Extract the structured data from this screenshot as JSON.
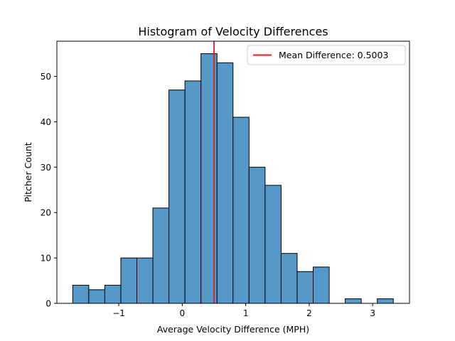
{
  "chart_data": {
    "type": "bar",
    "title": "Histogram of Velocity Differences",
    "xlabel": "Average Velocity Difference (MPH)",
    "ylabel": "Pitcher Count",
    "xlim": [
      -1.975,
      3.58
    ],
    "ylim": [
      0,
      57.75
    ],
    "xticks": [
      -1,
      0,
      1,
      2,
      3
    ],
    "xtick_labels": [
      "−1",
      "0",
      "1",
      "2",
      "3"
    ],
    "yticks": [
      0,
      10,
      20,
      30,
      40,
      50
    ],
    "yticks_labels": [
      "0",
      "10",
      "20",
      "30",
      "40",
      "50"
    ],
    "bin_start": -1.725,
    "bin_width": 0.2525,
    "counts": [
      4,
      3,
      4,
      10,
      10,
      21,
      47,
      49,
      55,
      53,
      41,
      30,
      26,
      11,
      7,
      8,
      0,
      1,
      0,
      1
    ],
    "bar_color": "#5499c7",
    "edge_color": "#000000",
    "mean_line": {
      "value": 0.5003,
      "color": "#e41a1c",
      "label": "Mean Difference: 0.5003"
    },
    "legend_position": "top-right",
    "grid": false
  }
}
